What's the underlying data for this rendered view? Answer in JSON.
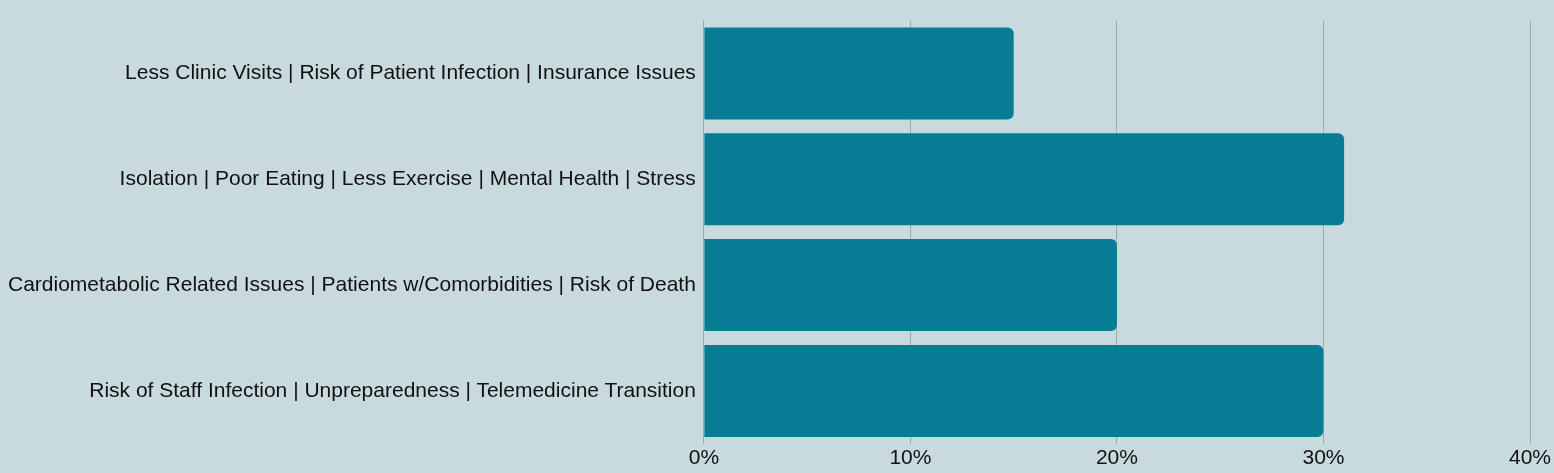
{
  "chart_data": {
    "type": "bar",
    "orientation": "horizontal",
    "categories": [
      "Less Clinic Visits | Risk of Patient Infection | Insurance Issues",
      "Isolation | Poor Eating | Less Exercise | Mental Health | Stress",
      "Cardiometabolic Related Issues | Patients w/Comorbidities | Risk of Death",
      "Risk of Staff Infection | Unpreparedness | Telemedicine Transition"
    ],
    "values": [
      15,
      31,
      20,
      30
    ],
    "color": "#077c94",
    "xlim": [
      0,
      40
    ],
    "xticks": [
      {
        "value": 0,
        "label": "0%"
      },
      {
        "value": 10,
        "label": "10%"
      },
      {
        "value": 20,
        "label": "20%"
      },
      {
        "value": 30,
        "label": "30%"
      },
      {
        "value": 40,
        "label": "40%"
      }
    ],
    "grid": "x",
    "legend": false
  }
}
